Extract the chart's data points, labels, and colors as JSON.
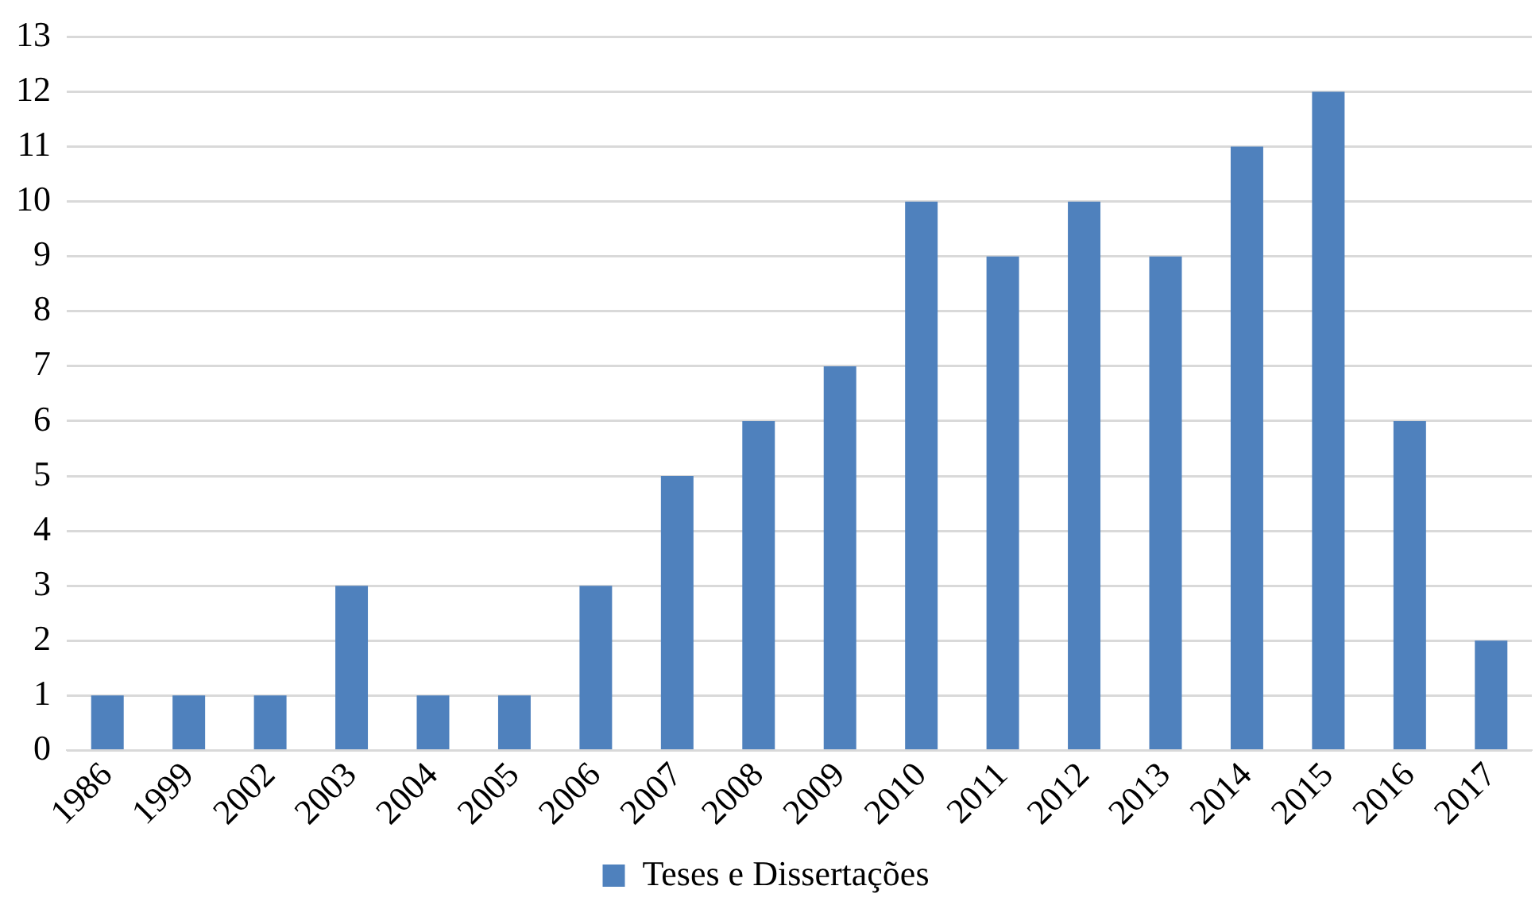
{
  "chart_data": {
    "type": "bar",
    "categories": [
      "1986",
      "1999",
      "2002",
      "2003",
      "2004",
      "2005",
      "2006",
      "2007",
      "2008",
      "2009",
      "2010",
      "2011",
      "2012",
      "2013",
      "2014",
      "2015",
      "2016",
      "2017"
    ],
    "series": [
      {
        "name": "Teses e Dissertações",
        "color": "#4f81bd",
        "values": [
          1,
          1,
          1,
          3,
          1,
          1,
          3,
          5,
          6,
          7,
          10,
          9,
          10,
          9,
          11,
          12,
          6,
          2
        ]
      }
    ],
    "ylim": [
      0,
      13
    ],
    "yticks": [
      0,
      1,
      2,
      3,
      4,
      5,
      6,
      7,
      8,
      9,
      10,
      11,
      12,
      13
    ],
    "grid": "y",
    "legend": "bottom"
  }
}
